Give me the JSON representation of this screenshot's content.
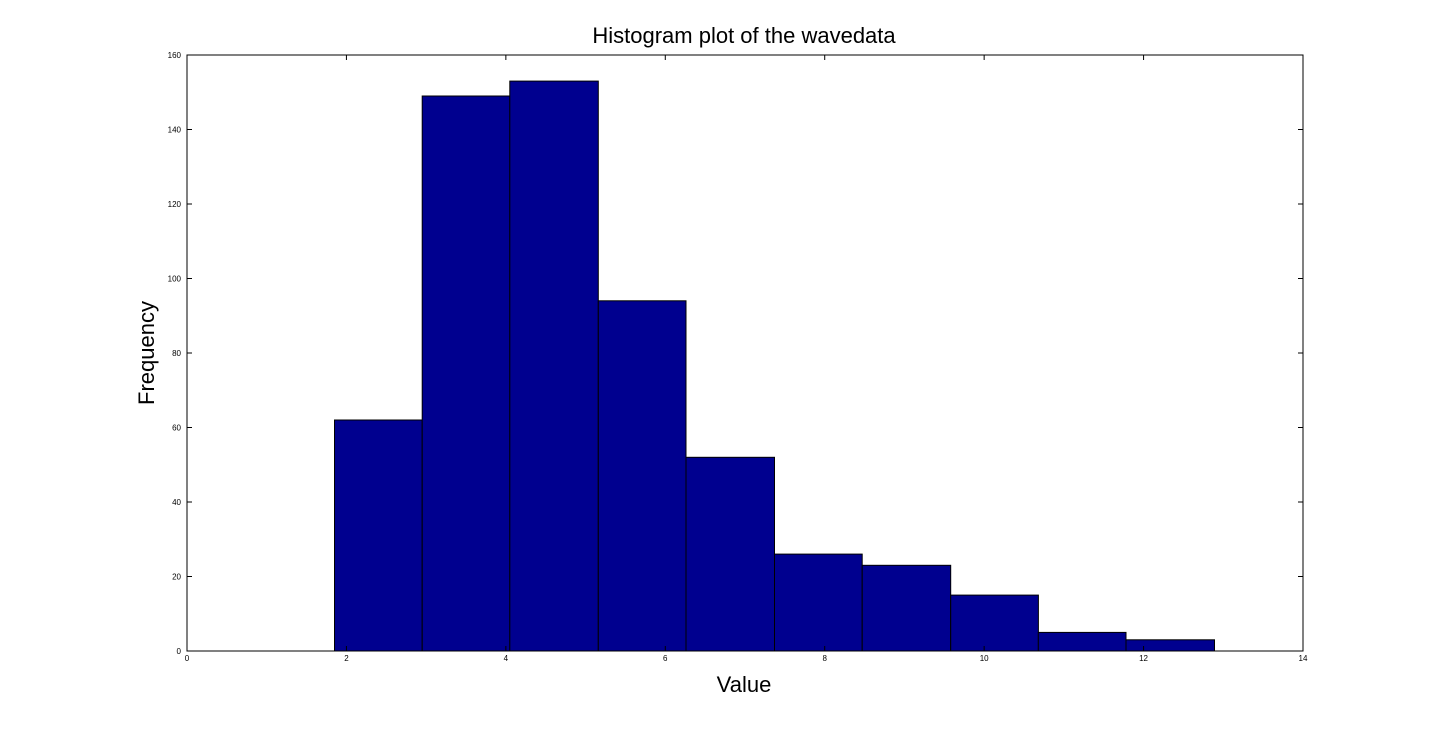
{
  "chart_data": {
    "type": "bar",
    "title": "Histogram plot of the wavedata",
    "xlabel": "Value",
    "ylabel": "Frequency",
    "xlim": [
      0,
      14
    ],
    "ylim": [
      0,
      160
    ],
    "xticks": [
      0,
      2,
      4,
      6,
      8,
      10,
      12,
      14
    ],
    "yticks": [
      0,
      20,
      40,
      60,
      80,
      100,
      120,
      140,
      160
    ],
    "grid": false,
    "bar_color": "#00008F",
    "bins": [
      {
        "x0": 1.85,
        "x1": 2.95,
        "value": 62
      },
      {
        "x0": 2.95,
        "x1": 4.05,
        "value": 149
      },
      {
        "x0": 4.05,
        "x1": 5.16,
        "value": 153
      },
      {
        "x0": 5.16,
        "x1": 6.26,
        "value": 94
      },
      {
        "x0": 6.26,
        "x1": 7.37,
        "value": 52
      },
      {
        "x0": 7.37,
        "x1": 8.47,
        "value": 26
      },
      {
        "x0": 8.47,
        "x1": 9.58,
        "value": 23
      },
      {
        "x0": 9.58,
        "x1": 10.68,
        "value": 15
      },
      {
        "x0": 10.68,
        "x1": 11.78,
        "value": 5
      },
      {
        "x0": 11.78,
        "x1": 12.89,
        "value": 3
      }
    ]
  }
}
